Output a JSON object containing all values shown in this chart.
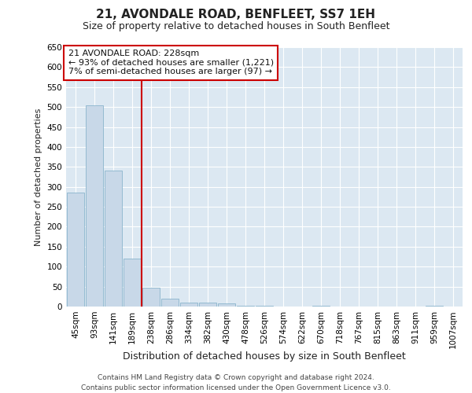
{
  "title": "21, AVONDALE ROAD, BENFLEET, SS7 1EH",
  "subtitle": "Size of property relative to detached houses in South Benfleet",
  "xlabel": "Distribution of detached houses by size in South Benfleet",
  "ylabel": "Number of detached properties",
  "footer1": "Contains HM Land Registry data © Crown copyright and database right 2024.",
  "footer2": "Contains public sector information licensed under the Open Government Licence v3.0.",
  "bin_labels": [
    "45sqm",
    "93sqm",
    "141sqm",
    "189sqm",
    "238sqm",
    "286sqm",
    "334sqm",
    "382sqm",
    "430sqm",
    "478sqm",
    "526sqm",
    "574sqm",
    "622sqm",
    "670sqm",
    "718sqm",
    "767sqm",
    "815sqm",
    "863sqm",
    "911sqm",
    "959sqm",
    "1007sqm"
  ],
  "bar_values": [
    285,
    505,
    340,
    120,
    47,
    20,
    10,
    10,
    8,
    2,
    2,
    0,
    0,
    1,
    0,
    0,
    0,
    0,
    0,
    1,
    0
  ],
  "bar_color": "#c8d8e8",
  "bar_edge_color": "#8ab4cc",
  "vline_x_index": 4,
  "vline_color": "#cc0000",
  "annotation_line0": "21 AVONDALE ROAD: 228sqm",
  "annotation_line1": "← 93% of detached houses are smaller (1,221)",
  "annotation_line2": "7% of semi-detached houses are larger (97) →",
  "annotation_box_edge": "#cc0000",
  "ylim": [
    0,
    650
  ],
  "yticks": [
    0,
    50,
    100,
    150,
    200,
    250,
    300,
    350,
    400,
    450,
    500,
    550,
    600,
    650
  ],
  "fig_bg_color": "#ffffff",
  "plot_bg_color": "#dce8f2",
  "grid_color": "#ffffff",
  "title_fontsize": 11,
  "subtitle_fontsize": 9,
  "ylabel_fontsize": 8,
  "xlabel_fontsize": 9,
  "tick_fontsize": 7.5,
  "footer_fontsize": 6.5,
  "annotation_fontsize": 8
}
